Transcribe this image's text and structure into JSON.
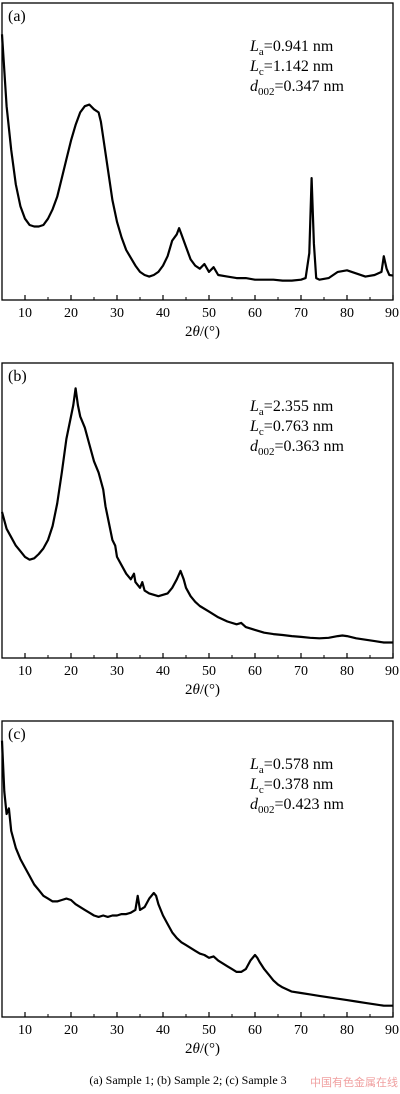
{
  "caption": "(a) Sample 1; (b) Sample 2; (c) Sample 3",
  "watermark": "中国有色金属在线",
  "xaxis": {
    "label_prefix": "2",
    "label_theta": "θ",
    "label_suffix": "/(°)"
  },
  "chart_data": [
    {
      "type": "line",
      "panel": "(a)",
      "xlim": [
        5,
        90
      ],
      "xticks": [
        10,
        20,
        30,
        40,
        50,
        60,
        70,
        80,
        90
      ],
      "params": [
        {
          "symbol": "L",
          "sub": "a",
          "value": "=0.941 nm"
        },
        {
          "symbol": "L",
          "sub": "c",
          "value": "=1.142 nm"
        },
        {
          "symbol": "d",
          "sub": "002",
          "value": "=0.347 nm"
        }
      ],
      "series": [
        {
          "values": [
            [
              5,
              0.95
            ],
            [
              6,
              0.72
            ],
            [
              7,
              0.58
            ],
            [
              8,
              0.47
            ],
            [
              9,
              0.4
            ],
            [
              10,
              0.36
            ],
            [
              11,
              0.34
            ],
            [
              12,
              0.335
            ],
            [
              13,
              0.335
            ],
            [
              14,
              0.34
            ],
            [
              15,
              0.36
            ],
            [
              16,
              0.39
            ],
            [
              17,
              0.43
            ],
            [
              18,
              0.49
            ],
            [
              19,
              0.55
            ],
            [
              20,
              0.61
            ],
            [
              21,
              0.66
            ],
            [
              22,
              0.7
            ],
            [
              23,
              0.72
            ],
            [
              24,
              0.725
            ],
            [
              25,
              0.71
            ],
            [
              26,
              0.7
            ],
            [
              26.5,
              0.67
            ],
            [
              27,
              0.62
            ],
            [
              28,
              0.52
            ],
            [
              29,
              0.42
            ],
            [
              30,
              0.35
            ],
            [
              31,
              0.3
            ],
            [
              32,
              0.26
            ],
            [
              33,
              0.235
            ],
            [
              34,
              0.21
            ],
            [
              35,
              0.19
            ],
            [
              36,
              0.18
            ],
            [
              37,
              0.175
            ],
            [
              38,
              0.18
            ],
            [
              39,
              0.19
            ],
            [
              40,
              0.21
            ],
            [
              41,
              0.24
            ],
            [
              42,
              0.29
            ],
            [
              43,
              0.31
            ],
            [
              43.5,
              0.33
            ],
            [
              44,
              0.31
            ],
            [
              45,
              0.27
            ],
            [
              46,
              0.23
            ],
            [
              47,
              0.21
            ],
            [
              48,
              0.2
            ],
            [
              49,
              0.215
            ],
            [
              50,
              0.19
            ],
            [
              51,
              0.205
            ],
            [
              52,
              0.18
            ],
            [
              54,
              0.175
            ],
            [
              56,
              0.17
            ],
            [
              58,
              0.17
            ],
            [
              60,
              0.165
            ],
            [
              62,
              0.165
            ],
            [
              64,
              0.165
            ],
            [
              66,
              0.162
            ],
            [
              68,
              0.162
            ],
            [
              70,
              0.165
            ],
            [
              71,
              0.17
            ],
            [
              71.8,
              0.25
            ],
            [
              72.3,
              0.49
            ],
            [
              72.8,
              0.28
            ],
            [
              73.3,
              0.17
            ],
            [
              74,
              0.165
            ],
            [
              76,
              0.17
            ],
            [
              78,
              0.19
            ],
            [
              80,
              0.195
            ],
            [
              82,
              0.185
            ],
            [
              84,
              0.175
            ],
            [
              86,
              0.18
            ],
            [
              87.5,
              0.19
            ],
            [
              88,
              0.24
            ],
            [
              88.6,
              0.2
            ],
            [
              89.2,
              0.18
            ],
            [
              90,
              0.178
            ]
          ]
        }
      ],
      "ylim": [
        0.1,
        1.05
      ]
    },
    {
      "type": "line",
      "panel": "(b)",
      "xlim": [
        5,
        90
      ],
      "xticks": [
        10,
        20,
        30,
        40,
        50,
        60,
        70,
        80,
        90
      ],
      "params": [
        {
          "symbol": "L",
          "sub": "a",
          "value": "=2.355 nm"
        },
        {
          "symbol": "L",
          "sub": "c",
          "value": "=0.763 nm"
        },
        {
          "symbol": "d",
          "sub": "002",
          "value": "=0.363 nm"
        }
      ],
      "series": [
        {
          "values": [
            [
              5,
              0.52
            ],
            [
              6,
              0.46
            ],
            [
              7,
              0.43
            ],
            [
              8,
              0.4
            ],
            [
              9,
              0.38
            ],
            [
              10,
              0.36
            ],
            [
              11,
              0.35
            ],
            [
              12,
              0.355
            ],
            [
              13,
              0.37
            ],
            [
              14,
              0.39
            ],
            [
              15,
              0.42
            ],
            [
              16,
              0.47
            ],
            [
              17,
              0.55
            ],
            [
              18,
              0.66
            ],
            [
              19,
              0.78
            ],
            [
              20,
              0.86
            ],
            [
              20.5,
              0.9
            ],
            [
              21,
              0.96
            ],
            [
              21.5,
              0.9
            ],
            [
              22,
              0.86
            ],
            [
              23,
              0.82
            ],
            [
              24,
              0.76
            ],
            [
              25,
              0.7
            ],
            [
              26,
              0.66
            ],
            [
              26.5,
              0.63
            ],
            [
              27,
              0.6
            ],
            [
              27.5,
              0.54
            ],
            [
              28,
              0.5
            ],
            [
              29,
              0.42
            ],
            [
              29.6,
              0.4
            ],
            [
              30,
              0.36
            ],
            [
              31,
              0.33
            ],
            [
              32,
              0.3
            ],
            [
              33,
              0.28
            ],
            [
              33.7,
              0.3
            ],
            [
              34,
              0.27
            ],
            [
              35,
              0.25
            ],
            [
              35.5,
              0.27
            ],
            [
              36,
              0.24
            ],
            [
              37,
              0.23
            ],
            [
              38,
              0.225
            ],
            [
              39,
              0.22
            ],
            [
              40,
              0.225
            ],
            [
              41,
              0.23
            ],
            [
              42,
              0.25
            ],
            [
              43,
              0.28
            ],
            [
              43.8,
              0.31
            ],
            [
              44.5,
              0.28
            ],
            [
              45,
              0.25
            ],
            [
              46,
              0.22
            ],
            [
              47,
              0.2
            ],
            [
              48,
              0.185
            ],
            [
              50,
              0.165
            ],
            [
              52,
              0.145
            ],
            [
              54,
              0.13
            ],
            [
              56,
              0.12
            ],
            [
              57,
              0.125
            ],
            [
              58,
              0.11
            ],
            [
              60,
              0.1
            ],
            [
              62,
              0.09
            ],
            [
              64,
              0.085
            ],
            [
              66,
              0.082
            ],
            [
              68,
              0.078
            ],
            [
              70,
              0.075
            ],
            [
              72,
              0.072
            ],
            [
              74,
              0.07
            ],
            [
              76,
              0.072
            ],
            [
              78,
              0.078
            ],
            [
              79,
              0.08
            ],
            [
              80,
              0.078
            ],
            [
              82,
              0.07
            ],
            [
              84,
              0.065
            ],
            [
              86,
              0.06
            ],
            [
              88,
              0.055
            ],
            [
              90,
              0.055
            ]
          ]
        }
      ],
      "ylim": [
        0.0,
        1.05
      ]
    },
    {
      "type": "line",
      "panel": "(c)",
      "xlim": [
        5,
        90
      ],
      "xticks": [
        10,
        20,
        30,
        40,
        50,
        60,
        70,
        80,
        90
      ],
      "params": [
        {
          "symbol": "L",
          "sub": "a",
          "value": "=0.578 nm"
        },
        {
          "symbol": "L",
          "sub": "c",
          "value": "=0.378 nm"
        },
        {
          "symbol": "d",
          "sub": "002",
          "value": "=0.423 nm"
        }
      ],
      "series": [
        {
          "values": [
            [
              5,
              0.98
            ],
            [
              5.5,
              0.8
            ],
            [
              6,
              0.72
            ],
            [
              6.5,
              0.74
            ],
            [
              7,
              0.66
            ],
            [
              8,
              0.6
            ],
            [
              9,
              0.56
            ],
            [
              10,
              0.53
            ],
            [
              11,
              0.5
            ],
            [
              12,
              0.47
            ],
            [
              13,
              0.45
            ],
            [
              14,
              0.43
            ],
            [
              15,
              0.42
            ],
            [
              16,
              0.41
            ],
            [
              17,
              0.41
            ],
            [
              18,
              0.415
            ],
            [
              19,
              0.42
            ],
            [
              20,
              0.415
            ],
            [
              21,
              0.4
            ],
            [
              22,
              0.39
            ],
            [
              23,
              0.38
            ],
            [
              24,
              0.37
            ],
            [
              25,
              0.36
            ],
            [
              26,
              0.355
            ],
            [
              27,
              0.36
            ],
            [
              28,
              0.355
            ],
            [
              29,
              0.36
            ],
            [
              30,
              0.36
            ],
            [
              31,
              0.365
            ],
            [
              32,
              0.365
            ],
            [
              33,
              0.37
            ],
            [
              34,
              0.38
            ],
            [
              34.5,
              0.43
            ],
            [
              35,
              0.38
            ],
            [
              36,
              0.39
            ],
            [
              37,
              0.42
            ],
            [
              38,
              0.44
            ],
            [
              38.5,
              0.43
            ],
            [
              39,
              0.4
            ],
            [
              40,
              0.36
            ],
            [
              41,
              0.33
            ],
            [
              42,
              0.3
            ],
            [
              43,
              0.28
            ],
            [
              44,
              0.265
            ],
            [
              45,
              0.255
            ],
            [
              46,
              0.245
            ],
            [
              47,
              0.235
            ],
            [
              48,
              0.225
            ],
            [
              49,
              0.22
            ],
            [
              50,
              0.21
            ],
            [
              51,
              0.215
            ],
            [
              52,
              0.2
            ],
            [
              53,
              0.19
            ],
            [
              54,
              0.18
            ],
            [
              55,
              0.17
            ],
            [
              56,
              0.16
            ],
            [
              57,
              0.16
            ],
            [
              58,
              0.17
            ],
            [
              59,
              0.2
            ],
            [
              60,
              0.22
            ],
            [
              60.5,
              0.21
            ],
            [
              61,
              0.195
            ],
            [
              62,
              0.17
            ],
            [
              63,
              0.15
            ],
            [
              64,
              0.13
            ],
            [
              65,
              0.115
            ],
            [
              66,
              0.105
            ],
            [
              68,
              0.09
            ],
            [
              70,
              0.085
            ],
            [
              72,
              0.08
            ],
            [
              74,
              0.075
            ],
            [
              76,
              0.07
            ],
            [
              78,
              0.065
            ],
            [
              80,
              0.06
            ],
            [
              82,
              0.055
            ],
            [
              84,
              0.05
            ],
            [
              86,
              0.045
            ],
            [
              88,
              0.04
            ],
            [
              90,
              0.04
            ]
          ]
        }
      ],
      "ylim": [
        0.0,
        1.05
      ]
    }
  ]
}
